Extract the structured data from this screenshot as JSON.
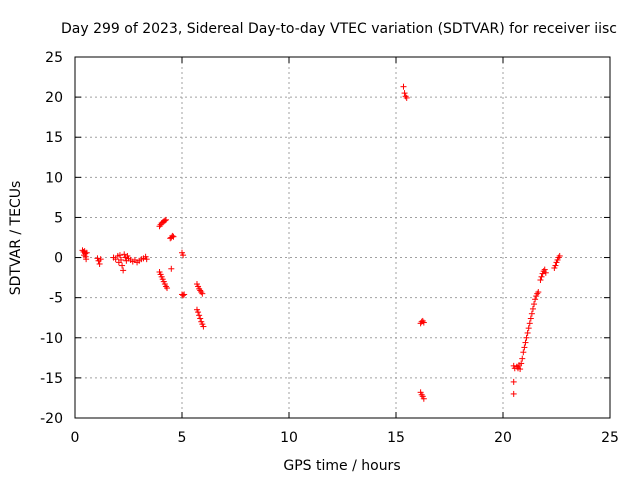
{
  "chart_data": {
    "type": "scatter",
    "title": "Day 299 of 2023, Sidereal Day-to-day VTEC variation (SDTVAR) for receiver iisc",
    "xlabel": "GPS time / hours",
    "ylabel": "SDTVAR / TECUs",
    "xlim": [
      0,
      25
    ],
    "ylim": [
      -20,
      25
    ],
    "xticks": [
      0,
      5,
      10,
      15,
      20,
      25
    ],
    "yticks": [
      -20,
      -15,
      -10,
      -5,
      0,
      5,
      10,
      15,
      20,
      25
    ],
    "grid": true,
    "marker": "+",
    "color": "#ff0000",
    "series": [
      {
        "name": "SDTVAR",
        "points": [
          [
            0.35,
            0.9
          ],
          [
            0.4,
            0.7
          ],
          [
            0.42,
            0.3
          ],
          [
            0.45,
            0.8
          ],
          [
            0.48,
            0.5
          ],
          [
            0.5,
            0.1
          ],
          [
            0.52,
            -0.2
          ],
          [
            0.55,
            0.6
          ],
          [
            1.05,
            -0.1
          ],
          [
            1.1,
            -0.4
          ],
          [
            1.15,
            -0.8
          ],
          [
            1.2,
            -0.2
          ],
          [
            1.8,
            0.0
          ],
          [
            1.9,
            -0.2
          ],
          [
            2.0,
            0.2
          ],
          [
            2.05,
            -0.6
          ],
          [
            2.1,
            0.3
          ],
          [
            2.15,
            -0.3
          ],
          [
            2.2,
            -1.0
          ],
          [
            2.25,
            -1.6
          ],
          [
            2.3,
            0.4
          ],
          [
            2.35,
            0.0
          ],
          [
            2.4,
            -0.4
          ],
          [
            2.45,
            0.2
          ],
          [
            2.5,
            -0.1
          ],
          [
            2.6,
            -0.3
          ],
          [
            2.7,
            -0.5
          ],
          [
            2.8,
            -0.3
          ],
          [
            2.9,
            -0.6
          ],
          [
            3.0,
            -0.4
          ],
          [
            3.1,
            -0.2
          ],
          [
            3.2,
            -0.1
          ],
          [
            3.3,
            0.1
          ],
          [
            3.35,
            -0.2
          ],
          [
            3.95,
            3.9
          ],
          [
            4.0,
            4.1
          ],
          [
            4.05,
            4.3
          ],
          [
            4.1,
            4.4
          ],
          [
            4.15,
            4.5
          ],
          [
            4.2,
            4.6
          ],
          [
            4.25,
            4.7
          ],
          [
            3.95,
            -1.8
          ],
          [
            4.0,
            -2.1
          ],
          [
            4.05,
            -2.4
          ],
          [
            4.1,
            -2.7
          ],
          [
            4.15,
            -3.0
          ],
          [
            4.2,
            -3.3
          ],
          [
            4.25,
            -3.6
          ],
          [
            4.3,
            -3.8
          ],
          [
            4.45,
            2.4
          ],
          [
            4.5,
            2.5
          ],
          [
            4.55,
            2.7
          ],
          [
            4.6,
            2.6
          ],
          [
            4.5,
            -1.4
          ],
          [
            5.0,
            0.6
          ],
          [
            5.05,
            0.3
          ],
          [
            5.0,
            -4.6
          ],
          [
            5.05,
            -4.7
          ],
          [
            5.1,
            -4.6
          ],
          [
            5.7,
            -3.3
          ],
          [
            5.75,
            -3.6
          ],
          [
            5.8,
            -3.9
          ],
          [
            5.85,
            -4.1
          ],
          [
            5.9,
            -4.3
          ],
          [
            5.95,
            -4.5
          ],
          [
            5.7,
            -6.5
          ],
          [
            5.75,
            -6.8
          ],
          [
            5.8,
            -7.2
          ],
          [
            5.85,
            -7.6
          ],
          [
            5.9,
            -8.0
          ],
          [
            5.95,
            -8.3
          ],
          [
            6.0,
            -8.6
          ],
          [
            15.35,
            21.3
          ],
          [
            15.4,
            20.5
          ],
          [
            15.45,
            20.1
          ],
          [
            15.5,
            19.9
          ],
          [
            16.15,
            -8.2
          ],
          [
            16.2,
            -8.0
          ],
          [
            16.25,
            -7.9
          ],
          [
            16.3,
            -8.1
          ],
          [
            16.15,
            -16.8
          ],
          [
            16.2,
            -17.1
          ],
          [
            16.25,
            -17.3
          ],
          [
            16.3,
            -17.6
          ],
          [
            20.5,
            -13.5
          ],
          [
            20.55,
            -13.8
          ],
          [
            20.5,
            -15.5
          ],
          [
            20.5,
            -17.0
          ],
          [
            20.65,
            -13.6
          ],
          [
            20.7,
            -13.8
          ],
          [
            20.75,
            -13.4
          ],
          [
            20.8,
            -13.9
          ],
          [
            20.85,
            -13.2
          ],
          [
            20.9,
            -12.6
          ],
          [
            20.95,
            -11.8
          ],
          [
            21.0,
            -11.2
          ],
          [
            21.05,
            -10.6
          ],
          [
            21.1,
            -10.0
          ],
          [
            21.15,
            -9.4
          ],
          [
            21.2,
            -8.8
          ],
          [
            21.25,
            -8.2
          ],
          [
            21.3,
            -7.6
          ],
          [
            21.35,
            -7.0
          ],
          [
            21.4,
            -6.4
          ],
          [
            21.45,
            -5.8
          ],
          [
            21.5,
            -5.2
          ],
          [
            21.55,
            -4.8
          ],
          [
            21.6,
            -4.5
          ],
          [
            21.65,
            -4.3
          ],
          [
            21.75,
            -2.8
          ],
          [
            21.8,
            -2.4
          ],
          [
            21.85,
            -2.0
          ],
          [
            21.9,
            -1.7
          ],
          [
            21.95,
            -1.5
          ],
          [
            22.0,
            -1.9
          ],
          [
            22.4,
            -1.3
          ],
          [
            22.45,
            -1.0
          ],
          [
            22.5,
            -0.6
          ],
          [
            22.55,
            -0.3
          ],
          [
            22.6,
            0.0
          ],
          [
            22.65,
            0.2
          ]
        ]
      }
    ]
  }
}
